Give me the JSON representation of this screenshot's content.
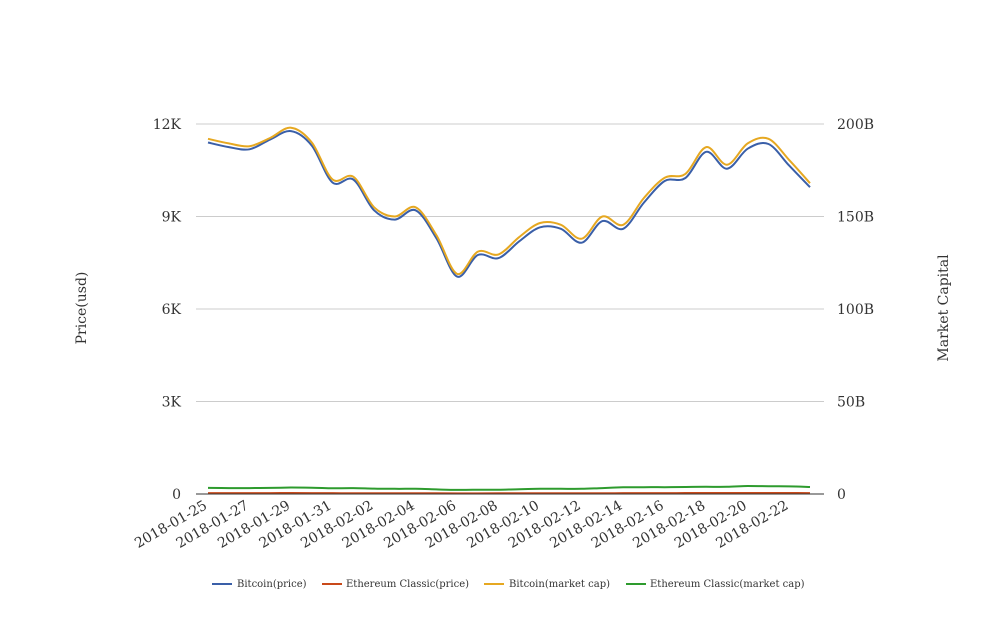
{
  "chart_data": {
    "type": "line",
    "title": "",
    "ylabel_left": "Price(usd)",
    "ylabel_right": "Market Capital",
    "left_axis": {
      "min": 0,
      "max": 12000,
      "ticks": [
        0,
        3000,
        6000,
        9000,
        12000
      ],
      "tick_labels": [
        "0",
        "3K",
        "6K",
        "9K",
        "12K"
      ]
    },
    "right_axis": {
      "min": 0,
      "max": 200000000000,
      "ticks": [
        0,
        50000000000,
        100000000000,
        150000000000,
        200000000000
      ],
      "tick_labels": [
        "0",
        "50B",
        "100B",
        "150B",
        "200B"
      ]
    },
    "grid": "horizontal",
    "legend_position": "bottom",
    "x_tick_labels": [
      "2018-01-25",
      "2018-01-27",
      "2018-01-29",
      "2018-01-31",
      "2018-02-02",
      "2018-02-04",
      "2018-02-06",
      "2018-02-08",
      "2018-02-10",
      "2018-02-12",
      "2018-02-14",
      "2018-02-16",
      "2018-02-18",
      "2018-02-20",
      "2018-02-22"
    ],
    "x": [
      "2018-01-25",
      "2018-01-26",
      "2018-01-27",
      "2018-01-28",
      "2018-01-29",
      "2018-01-30",
      "2018-01-31",
      "2018-02-01",
      "2018-02-02",
      "2018-02-03",
      "2018-02-04",
      "2018-02-05",
      "2018-02-06",
      "2018-02-07",
      "2018-02-08",
      "2018-02-09",
      "2018-02-10",
      "2018-02-11",
      "2018-02-12",
      "2018-02-13",
      "2018-02-14",
      "2018-02-15",
      "2018-02-16",
      "2018-02-17",
      "2018-02-18",
      "2018-02-19",
      "2018-02-20",
      "2018-02-21",
      "2018-02-22",
      "2018-02-23"
    ],
    "series": [
      {
        "name": "Bitcoin(price)",
        "axis": "left",
        "color": "#3a5fa8",
        "values": [
          11400,
          11250,
          11180,
          11500,
          11770,
          11300,
          10100,
          10200,
          9200,
          8900,
          9200,
          8300,
          7050,
          7750,
          7650,
          8200,
          8650,
          8600,
          8150,
          8850,
          8600,
          9450,
          10150,
          10250,
          11100,
          10550,
          11200,
          11350,
          10650,
          9950
        ]
      },
      {
        "name": "Ethereum Classic(price)",
        "axis": "left",
        "color": "#c9491a",
        "values": [
          30,
          29,
          28,
          29,
          31,
          30,
          28,
          27,
          25,
          24,
          24,
          22,
          20,
          21,
          22,
          23,
          24,
          24,
          25,
          26,
          28,
          29,
          30,
          31,
          32,
          31,
          34,
          33,
          32,
          30
        ]
      },
      {
        "name": "Bitcoin(market cap)",
        "axis": "right",
        "color": "#e6a821",
        "values": [
          192000000000,
          189500000000,
          188000000000,
          192500000000,
          198000000000,
          190000000000,
          170000000000,
          171500000000,
          155000000000,
          150000000000,
          155000000000,
          140000000000,
          119000000000,
          131000000000,
          129500000000,
          139000000000,
          146500000000,
          145500000000,
          138000000000,
          150000000000,
          145500000000,
          160000000000,
          171000000000,
          173000000000,
          187500000000,
          178000000000,
          189500000000,
          192000000000,
          180500000000,
          168000000000
        ]
      },
      {
        "name": "Ethereum Classic(market cap)",
        "axis": "right",
        "color": "#2e9b2e",
        "values": [
          3300000000,
          3200000000,
          3200000000,
          3300000000,
          3500000000,
          3400000000,
          3100000000,
          3200000000,
          2900000000,
          2800000000,
          2800000000,
          2500000000,
          2200000000,
          2300000000,
          2300000000,
          2600000000,
          2800000000,
          2800000000,
          2800000000,
          3200000000,
          3600000000,
          3700000000,
          3700000000,
          3800000000,
          3900000000,
          3900000000,
          4300000000,
          4200000000,
          4100000000,
          3800000000
        ]
      }
    ]
  }
}
